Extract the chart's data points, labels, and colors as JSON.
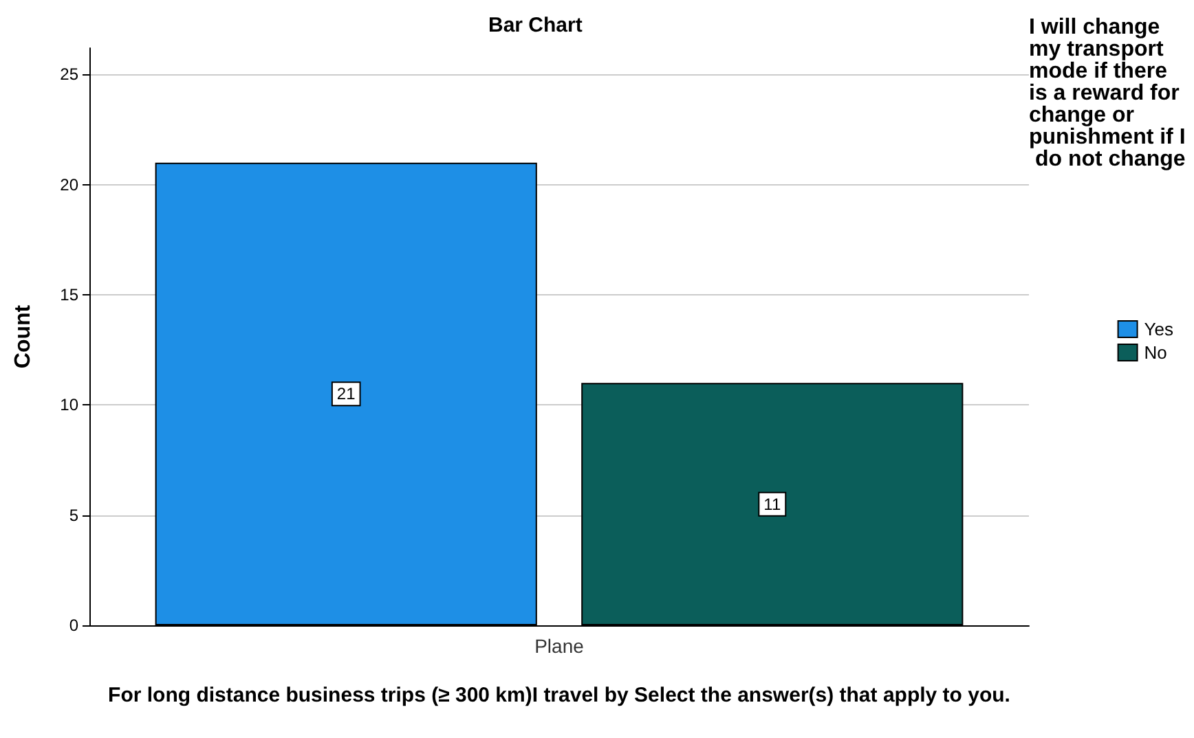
{
  "chart_data": {
    "type": "bar",
    "title": "Bar Chart",
    "xlabel": "For long distance business trips (≥ 300 km)I travel by Select the answer(s) that apply to you.",
    "ylabel": "Count",
    "legend_title": "I will change my transport mode if there is a reward for change or punishment if I do not change",
    "categories": [
      "Plane"
    ],
    "series": [
      {
        "name": "Yes",
        "color": "#1e8fe6",
        "values": [
          21
        ]
      },
      {
        "name": "No",
        "color": "#0b5e5a",
        "values": [
          11
        ]
      }
    ],
    "ylim": [
      0,
      26.2
    ],
    "yticks": [
      0,
      5,
      10,
      15,
      20,
      25
    ],
    "grid": "y",
    "legend": "right",
    "data_labels": true
  }
}
